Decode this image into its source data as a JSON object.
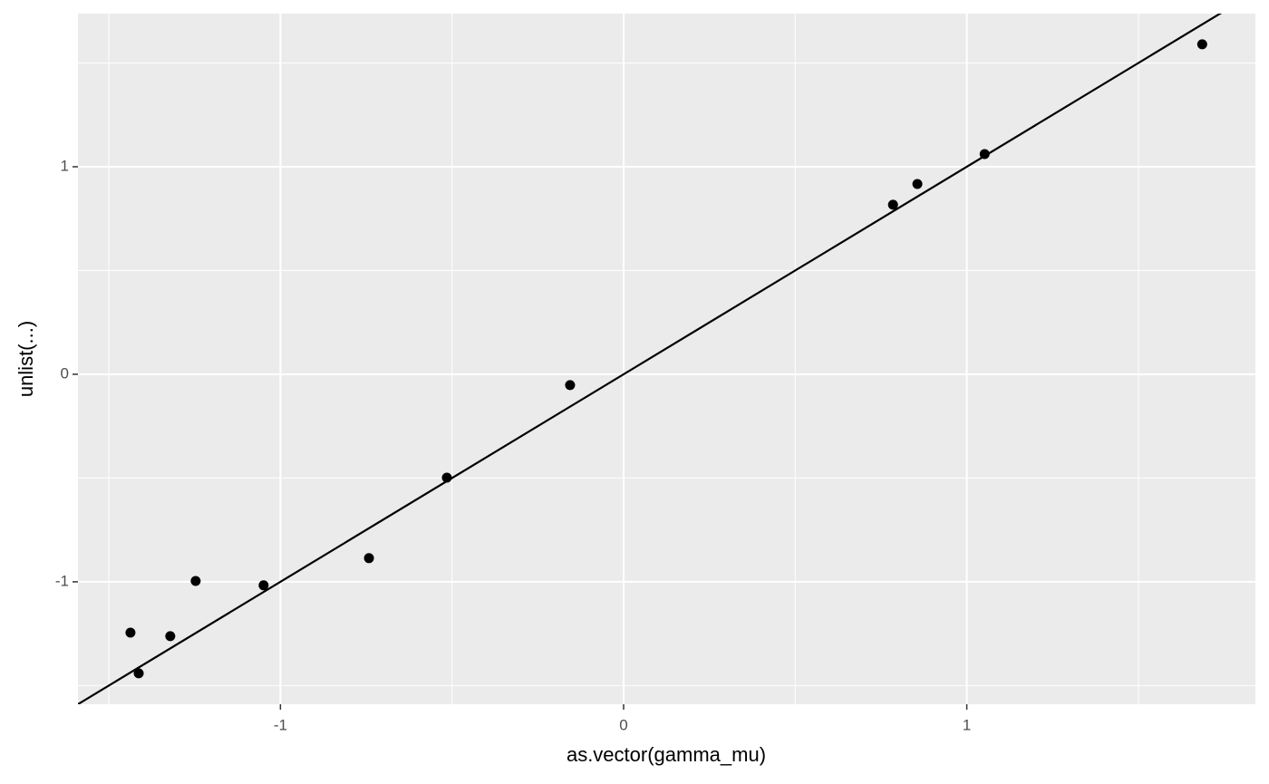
{
  "chart_data": {
    "type": "scatter",
    "x_label": "as.vector(gamma_mu)",
    "y_label": "unlist(...)",
    "x": [
      -1.437,
      -1.413,
      -1.321,
      -1.247,
      -1.049,
      -0.742,
      -0.515,
      -0.156,
      0.785,
      0.856,
      1.052,
      1.686
    ],
    "series": [
      {
        "color": "#000000",
        "values": [
          -1.245,
          -1.441,
          -1.262,
          -0.996,
          -1.017,
          -0.886,
          -0.498,
          -0.052,
          0.817,
          0.917,
          1.061,
          1.59
        ]
      }
    ],
    "reference_line": {
      "intercept": 0,
      "slope": 1,
      "color": "#000000"
    },
    "xlim": [
      -1.59,
      1.841
    ],
    "ylim": [
      -1.59,
      1.738
    ],
    "xticks": [
      -1,
      0,
      1
    ],
    "yticks": [
      -1,
      0,
      1
    ],
    "grid": true
  }
}
